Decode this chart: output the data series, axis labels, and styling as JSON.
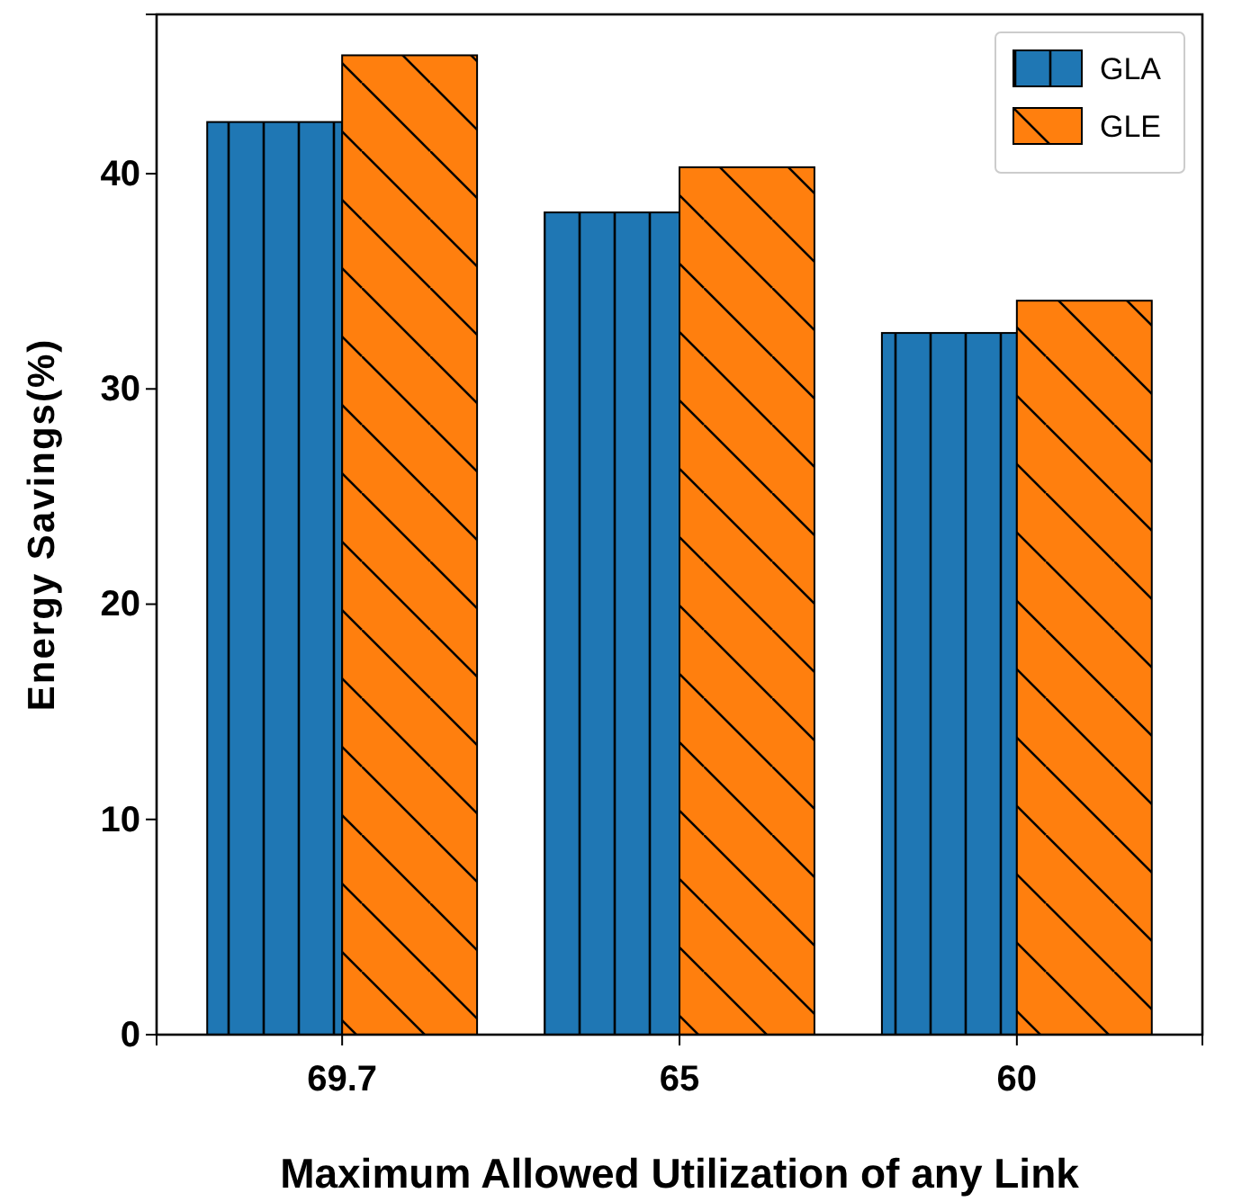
{
  "chart_data": {
    "type": "bar",
    "xlabel": "Maximum Allowed Utilization of any Link",
    "ylabel": "Energy Savings(%)",
    "categories": [
      "69.7",
      "65",
      "60"
    ],
    "series": [
      {
        "name": "GLA",
        "color": "#1f77b4",
        "values": [
          42.4,
          38.2,
          32.6
        ]
      },
      {
        "name": "GLE",
        "color": "#ff7f0e",
        "values": [
          45.5,
          40.3,
          34.1
        ]
      }
    ],
    "ylim": [
      0,
      47.4
    ],
    "yticks": [
      0,
      10,
      20,
      30,
      40
    ],
    "grid": false,
    "legend": "top right"
  }
}
